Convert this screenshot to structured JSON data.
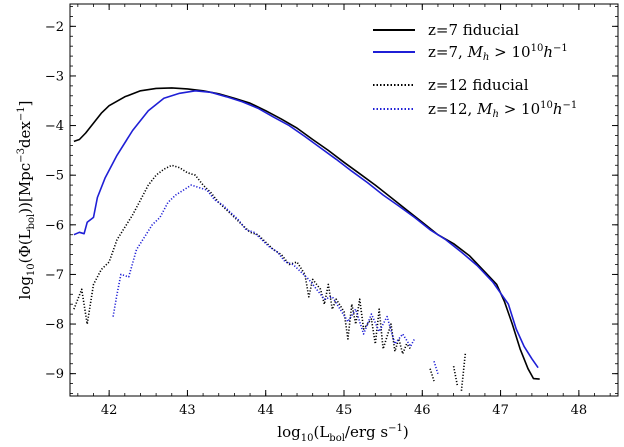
{
  "chart_data": {
    "type": "line",
    "title": "",
    "xlabel": "log10(L_bol/erg s^-1)",
    "ylabel": "log10(Φ(L_bol))[Mpc^-3 dex^-1]",
    "xlim": [
      41.5,
      48.5
    ],
    "ylim": [
      -9.45,
      -1.55
    ],
    "xticks": [
      "42",
      "43",
      "44",
      "45",
      "46",
      "47",
      "48"
    ],
    "yticks": [
      "−2",
      "−3",
      "−4",
      "−5",
      "−6",
      "−7",
      "−8",
      "−9"
    ],
    "grid": false,
    "legend_position": "top-right",
    "series": [
      {
        "name": "z=7 fiducial",
        "color": "#000000",
        "linestyle": "solid",
        "segments": [
          [
            [
              41.55,
              -4.32
            ],
            [
              41.62,
              -4.28
            ],
            [
              41.7,
              -4.15
            ],
            [
              41.8,
              -3.95
            ],
            [
              41.9,
              -3.75
            ],
            [
              42.0,
              -3.6
            ],
            [
              42.2,
              -3.42
            ],
            [
              42.4,
              -3.3
            ],
            [
              42.6,
              -3.25
            ],
            [
              42.8,
              -3.24
            ],
            [
              43.0,
              -3.26
            ],
            [
              43.2,
              -3.3
            ],
            [
              43.4,
              -3.36
            ],
            [
              43.6,
              -3.45
            ],
            [
              43.8,
              -3.55
            ],
            [
              44.0,
              -3.7
            ],
            [
              44.2,
              -3.87
            ],
            [
              44.4,
              -4.05
            ],
            [
              44.6,
              -4.28
            ],
            [
              44.8,
              -4.5
            ],
            [
              45.0,
              -4.74
            ],
            [
              45.2,
              -4.97
            ],
            [
              45.4,
              -5.2
            ],
            [
              45.6,
              -5.45
            ],
            [
              45.8,
              -5.7
            ],
            [
              46.0,
              -5.95
            ],
            [
              46.2,
              -6.2
            ],
            [
              46.4,
              -6.38
            ],
            [
              46.6,
              -6.62
            ],
            [
              46.8,
              -6.95
            ],
            [
              46.95,
              -7.2
            ],
            [
              47.05,
              -7.55
            ],
            [
              47.15,
              -8.0
            ],
            [
              47.25,
              -8.5
            ],
            [
              47.35,
              -8.9
            ],
            [
              47.42,
              -9.1
            ],
            [
              47.5,
              -9.11
            ]
          ]
        ]
      },
      {
        "name": "z=7, M_h > 10^10 h^-1",
        "color": "#1f1fd6",
        "linestyle": "solid",
        "segments": [
          [
            [
              41.55,
              -6.2
            ],
            [
              41.62,
              -6.15
            ],
            [
              41.68,
              -6.18
            ],
            [
              41.72,
              -5.95
            ],
            [
              41.8,
              -5.85
            ],
            [
              41.85,
              -5.45
            ],
            [
              41.95,
              -5.05
            ],
            [
              42.1,
              -4.6
            ],
            [
              42.3,
              -4.1
            ],
            [
              42.5,
              -3.7
            ],
            [
              42.7,
              -3.45
            ],
            [
              42.9,
              -3.35
            ],
            [
              43.1,
              -3.3
            ],
            [
              43.3,
              -3.33
            ],
            [
              43.5,
              -3.42
            ],
            [
              43.7,
              -3.52
            ],
            [
              43.9,
              -3.65
            ],
            [
              44.1,
              -3.83
            ],
            [
              44.3,
              -4.0
            ],
            [
              44.5,
              -4.22
            ],
            [
              44.7,
              -4.45
            ],
            [
              44.9,
              -4.68
            ],
            [
              45.1,
              -4.92
            ],
            [
              45.3,
              -5.15
            ],
            [
              45.5,
              -5.4
            ],
            [
              45.7,
              -5.62
            ],
            [
              45.9,
              -5.85
            ],
            [
              46.1,
              -6.1
            ],
            [
              46.3,
              -6.3
            ],
            [
              46.5,
              -6.55
            ],
            [
              46.7,
              -6.82
            ],
            [
              46.9,
              -7.15
            ],
            [
              47.1,
              -7.6
            ],
            [
              47.2,
              -8.1
            ],
            [
              47.3,
              -8.45
            ],
            [
              47.4,
              -8.7
            ],
            [
              47.48,
              -8.88
            ]
          ]
        ]
      },
      {
        "name": "z=12 fiducial",
        "color": "#000000",
        "linestyle": "dotted",
        "segments": [
          [
            [
              41.55,
              -7.7
            ],
            [
              41.65,
              -7.3
            ],
            [
              41.72,
              -8.0
            ],
            [
              41.8,
              -7.2
            ],
            [
              41.9,
              -6.9
            ],
            [
              42.0,
              -6.75
            ],
            [
              42.1,
              -6.3
            ],
            [
              42.2,
              -6.05
            ],
            [
              42.3,
              -5.8
            ],
            [
              42.4,
              -5.5
            ],
            [
              42.5,
              -5.2
            ],
            [
              42.6,
              -5.0
            ],
            [
              42.7,
              -4.88
            ],
            [
              42.8,
              -4.8
            ],
            [
              42.9,
              -4.85
            ],
            [
              43.0,
              -4.95
            ],
            [
              43.1,
              -5.0
            ],
            [
              43.2,
              -5.2
            ],
            [
              43.3,
              -5.35
            ],
            [
              43.4,
              -5.55
            ],
            [
              43.5,
              -5.7
            ],
            [
              43.6,
              -5.85
            ],
            [
              43.7,
              -6.0
            ],
            [
              43.8,
              -6.15
            ],
            [
              43.9,
              -6.2
            ],
            [
              44.0,
              -6.35
            ],
            [
              44.1,
              -6.5
            ],
            [
              44.2,
              -6.6
            ],
            [
              44.3,
              -6.8
            ],
            [
              44.4,
              -6.75
            ],
            [
              44.5,
              -7.0
            ],
            [
              44.55,
              -7.45
            ],
            [
              44.6,
              -7.1
            ],
            [
              44.7,
              -7.3
            ],
            [
              44.75,
              -7.6
            ],
            [
              44.8,
              -7.2
            ],
            [
              44.85,
              -7.7
            ],
            [
              44.9,
              -7.5
            ],
            [
              45.0,
              -7.75
            ],
            [
              45.05,
              -8.3
            ],
            [
              45.1,
              -7.6
            ],
            [
              45.15,
              -8.0
            ],
            [
              45.2,
              -7.5
            ],
            [
              45.25,
              -8.1
            ],
            [
              45.35,
              -7.9
            ],
            [
              45.4,
              -8.4
            ],
            [
              45.45,
              -7.7
            ],
            [
              45.5,
              -8.5
            ],
            [
              45.6,
              -8.0
            ],
            [
              45.65,
              -8.55
            ],
            [
              45.7,
              -8.3
            ],
            [
              45.75,
              -8.6
            ],
            [
              45.8,
              -8.4
            ],
            [
              45.85,
              -8.5
            ]
          ],
          [
            [
              46.1,
              -8.9
            ],
            [
              46.15,
              -9.15
            ]
          ],
          [
            [
              46.4,
              -8.85
            ],
            [
              46.45,
              -9.25
            ]
          ],
          [
            [
              46.55,
              -8.6
            ],
            [
              46.5,
              -9.35
            ]
          ]
        ]
      },
      {
        "name": "z=12, M_h > 10^10 h^-1",
        "color": "#1f1fd6",
        "linestyle": "dotted",
        "segments": [
          [
            [
              42.05,
              -7.85
            ],
            [
              42.1,
              -7.4
            ],
            [
              42.15,
              -7.0
            ],
            [
              42.25,
              -7.05
            ],
            [
              42.35,
              -6.5
            ],
            [
              42.45,
              -6.25
            ],
            [
              42.55,
              -6.0
            ],
            [
              42.65,
              -5.85
            ],
            [
              42.75,
              -5.55
            ],
            [
              42.85,
              -5.4
            ],
            [
              42.95,
              -5.3
            ],
            [
              43.05,
              -5.2
            ],
            [
              43.15,
              -5.25
            ],
            [
              43.25,
              -5.3
            ],
            [
              43.35,
              -5.5
            ],
            [
              43.45,
              -5.6
            ],
            [
              43.55,
              -5.75
            ],
            [
              43.65,
              -5.9
            ],
            [
              43.75,
              -6.1
            ],
            [
              43.85,
              -6.15
            ],
            [
              43.95,
              -6.3
            ],
            [
              44.05,
              -6.45
            ],
            [
              44.15,
              -6.55
            ],
            [
              44.25,
              -6.75
            ],
            [
              44.35,
              -6.8
            ],
            [
              44.45,
              -6.95
            ],
            [
              44.55,
              -7.1
            ],
            [
              44.65,
              -7.3
            ],
            [
              44.75,
              -7.5
            ],
            [
              44.85,
              -7.45
            ],
            [
              44.95,
              -7.7
            ],
            [
              45.05,
              -7.95
            ],
            [
              45.15,
              -7.7
            ],
            [
              45.25,
              -8.2
            ],
            [
              45.35,
              -7.8
            ],
            [
              45.45,
              -8.15
            ],
            [
              45.55,
              -7.85
            ],
            [
              45.65,
              -8.4
            ],
            [
              45.75,
              -8.2
            ],
            [
              45.85,
              -8.45
            ],
            [
              45.9,
              -8.3
            ]
          ],
          [
            [
              46.15,
              -8.75
            ],
            [
              46.2,
              -9.0
            ]
          ]
        ]
      }
    ]
  }
}
